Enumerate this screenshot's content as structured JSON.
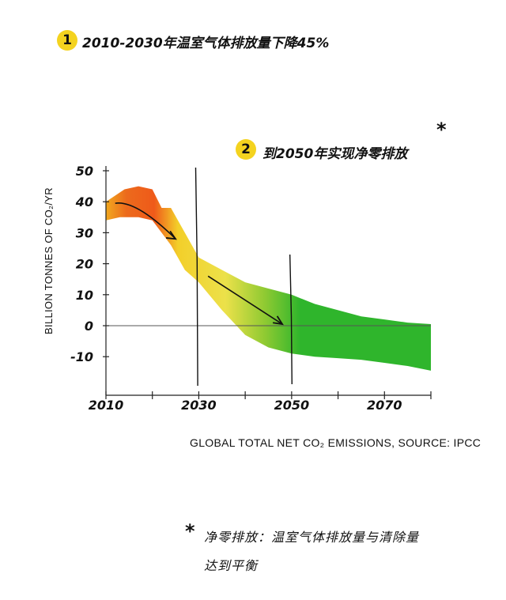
{
  "notes": {
    "first": {
      "number": "1",
      "text": "2010-2030年温室气体排放量下降45%"
    },
    "second": {
      "number": "2",
      "text": "到2050年实现净零排放",
      "asterisk": "*"
    }
  },
  "footnote": {
    "asterisk": "*",
    "line1": "净零排放：温室气体排放量与清除量",
    "line2": "达到平衡"
  },
  "source_caption": "GLOBAL TOTAL NET CO₂ EMISSIONS, SOURCE: IPCC",
  "colors": {
    "red": "#e8451a",
    "orange": "#f29a1c",
    "yellow": "#f0d52a",
    "green": "#2fb52c",
    "badge": "#f4d31f"
  },
  "chart_data": {
    "type": "area",
    "ylabel": "BILLION TONNES OF CO₂/YR",
    "xlabel": "",
    "xlim": [
      2010,
      2080
    ],
    "ylim": [
      -22,
      50
    ],
    "y_ticks": [
      50,
      40,
      30,
      20,
      10,
      0,
      -10
    ],
    "y_tick_labels": [
      "50",
      "40",
      "30",
      "20",
      "10",
      "0",
      "-10"
    ],
    "x_ticks": [
      2010,
      2030,
      2050,
      2070
    ],
    "x_tick_labels": [
      "2010",
      "2030",
      "2050",
      "2070"
    ],
    "band_upper": [
      [
        2010,
        40
      ],
      [
        2012,
        42
      ],
      [
        2014,
        44
      ],
      [
        2017,
        45
      ],
      [
        2020,
        44
      ],
      [
        2022,
        38
      ],
      [
        2024,
        38
      ],
      [
        2027,
        30
      ],
      [
        2030,
        22
      ],
      [
        2035,
        18
      ],
      [
        2040,
        14
      ],
      [
        2045,
        12
      ],
      [
        2050,
        10
      ],
      [
        2055,
        7
      ],
      [
        2060,
        5
      ],
      [
        2065,
        3
      ],
      [
        2070,
        2
      ],
      [
        2075,
        1
      ],
      [
        2080,
        0.5
      ]
    ],
    "band_lower": [
      [
        2010,
        34
      ],
      [
        2013,
        35
      ],
      [
        2017,
        35
      ],
      [
        2020,
        34
      ],
      [
        2022,
        30
      ],
      [
        2024,
        26
      ],
      [
        2027,
        18
      ],
      [
        2030,
        14
      ],
      [
        2035,
        5
      ],
      [
        2040,
        -3
      ],
      [
        2045,
        -7
      ],
      [
        2050,
        -9
      ],
      [
        2055,
        -10
      ],
      [
        2060,
        -10.5
      ],
      [
        2065,
        -11
      ],
      [
        2070,
        -12
      ],
      [
        2075,
        -13
      ],
      [
        2080,
        -14.5
      ]
    ],
    "trend_arrows": [
      {
        "from": [
          2012,
          39.5
        ],
        "to": [
          2025,
          28
        ]
      },
      {
        "from": [
          2032,
          16
        ],
        "to": [
          2048,
          0.5
        ]
      }
    ],
    "reference_lines": [
      2029.5,
      2049.8
    ],
    "grid": false
  }
}
